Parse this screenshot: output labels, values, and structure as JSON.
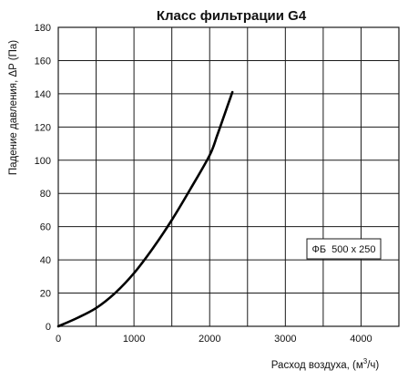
{
  "chart_data": {
    "type": "line",
    "title": "Класс фильтрации G4",
    "xlabel_prefix": "Расход воздуха, (м",
    "xlabel_sup": "3",
    "xlabel_suffix": "/ч)",
    "ylabel": "Падение давления, ΔP (Па)",
    "xlim": [
      0,
      4500
    ],
    "ylim": [
      0,
      180
    ],
    "x_grid_step": 500,
    "y_grid_step": 20,
    "x_tick_labels": [
      "0",
      "1000",
      "2000",
      "3000",
      "4000"
    ],
    "x_tick_values": [
      0,
      1000,
      2000,
      3000,
      4000
    ],
    "y_tick_labels": [
      "0",
      "20",
      "40",
      "60",
      "80",
      "100",
      "120",
      "140",
      "160",
      "180"
    ],
    "y_tick_values": [
      0,
      20,
      40,
      60,
      80,
      100,
      120,
      140,
      160,
      180
    ],
    "grid": true,
    "legend_position": "right",
    "series": [
      {
        "name": "ФБ  500 x 250",
        "color": "#000000",
        "x": [
          0,
          250,
          500,
          750,
          1000,
          1250,
          1500,
          1750,
          2000,
          2100,
          2200,
          2300
        ],
        "y": [
          0,
          5,
          11,
          20,
          32,
          47,
          64,
          83,
          103,
          115,
          128,
          141
        ]
      }
    ]
  }
}
